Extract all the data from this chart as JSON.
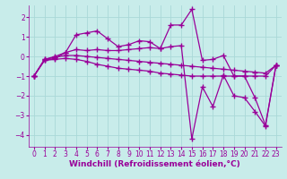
{
  "background_color": "#c8ecea",
  "grid_color": "#aad8d8",
  "line_color": "#990099",
  "marker": "+",
  "markersize": 4,
  "linewidth": 0.9,
  "markeredgewidth": 1.0,
  "xlabel": "Windchill (Refroidissement éolien,°C)",
  "xlabel_fontsize": 6.5,
  "tick_fontsize": 5.5,
  "xlim": [
    -0.5,
    23.5
  ],
  "ylim": [
    -4.6,
    2.6
  ],
  "yticks": [
    -4,
    -3,
    -2,
    -1,
    0,
    1,
    2
  ],
  "xticks": [
    0,
    1,
    2,
    3,
    4,
    5,
    6,
    7,
    8,
    9,
    10,
    11,
    12,
    13,
    14,
    15,
    16,
    17,
    18,
    19,
    20,
    21,
    22,
    23
  ],
  "s1": [
    -1.0,
    -0.2,
    -0.1,
    0.2,
    1.1,
    1.2,
    1.3,
    0.9,
    0.5,
    0.6,
    0.8,
    0.75,
    0.4,
    1.6,
    1.6,
    2.4,
    -0.2,
    -0.15,
    0.05,
    -1.0,
    -1.0,
    -2.1,
    -3.5,
    -0.45
  ],
  "s2": [
    -1.0,
    -0.15,
    0.0,
    0.2,
    0.35,
    0.3,
    0.35,
    0.3,
    0.3,
    0.35,
    0.4,
    0.45,
    0.4,
    0.5,
    0.55,
    -4.2,
    -1.55,
    -2.55,
    -0.95,
    -2.0,
    -2.1,
    -2.8,
    -3.55,
    -0.45
  ],
  "s3": [
    -1.0,
    -0.15,
    -0.05,
    0.05,
    0.05,
    0.0,
    -0.05,
    -0.1,
    -0.15,
    -0.2,
    -0.25,
    -0.3,
    -0.35,
    -0.4,
    -0.45,
    -0.5,
    -0.55,
    -0.6,
    -0.65,
    -0.7,
    -0.75,
    -0.8,
    -0.85,
    -0.45
  ],
  "s4": [
    -1.0,
    -0.2,
    -0.15,
    -0.1,
    -0.15,
    -0.25,
    -0.4,
    -0.5,
    -0.6,
    -0.65,
    -0.7,
    -0.75,
    -0.85,
    -0.9,
    -0.95,
    -1.0,
    -1.0,
    -1.0,
    -1.0,
    -1.0,
    -1.0,
    -1.0,
    -1.0,
    -0.45
  ]
}
